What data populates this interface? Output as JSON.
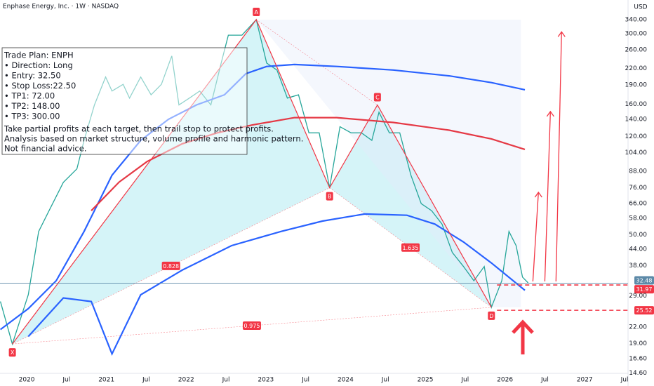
{
  "chart_data": {
    "type": "line",
    "title": "Enphase Energy, Inc. · 1W · NASDAQ",
    "currency": "USD",
    "log_scale": true,
    "grid": false,
    "xlim": [
      2019.665,
      2027.544
    ],
    "ylim": [
      13.0,
      405
    ],
    "xticks": [
      2020,
      {
        "value": 2020.5,
        "label": "Jul"
      },
      2021,
      {
        "value": 2021.5,
        "label": "Jul"
      },
      2022,
      {
        "value": 2022.5,
        "label": "Jul"
      },
      2023,
      {
        "value": 2023.5,
        "label": "Jul"
      },
      2024,
      {
        "value": 2024.5,
        "label": "Jul"
      },
      2025,
      {
        "value": 2025.5,
        "label": "Jul"
      },
      2026,
      {
        "value": 2026.5,
        "label": "Jul"
      },
      2027,
      {
        "value": 2027.5,
        "label": "Jul"
      }
    ],
    "yticks": [
      {
        "value": 14.6,
        "label": "14.60"
      },
      {
        "value": 16.6,
        "label": "16.60"
      },
      {
        "value": 19,
        "label": "19.00"
      },
      {
        "value": 22,
        "label": "22.00"
      },
      {
        "value": 29,
        "label": "29.00"
      },
      {
        "value": 38,
        "label": "38.00"
      },
      {
        "value": 44,
        "label": "44.00"
      },
      {
        "value": 50,
        "label": "50.00"
      },
      {
        "value": 58,
        "label": "58.00"
      },
      {
        "value": 66,
        "label": "66.00"
      },
      {
        "value": 76,
        "label": "76.00"
      },
      {
        "value": 88,
        "label": "88.00"
      },
      {
        "value": 104,
        "label": "104.00"
      },
      {
        "value": 120,
        "label": "120.00"
      },
      {
        "value": 140,
        "label": "140.00"
      },
      {
        "value": 160,
        "label": "160.00"
      },
      {
        "value": 190,
        "label": "190.00"
      },
      {
        "value": 220,
        "label": "220.00"
      },
      {
        "value": 260,
        "label": "260.00"
      },
      {
        "value": 300,
        "label": "300.00"
      },
      {
        "value": 340,
        "label": "340.00"
      }
    ],
    "series": [
      {
        "color": "#26a69a",
        "x": [
          2019.67,
          2019.82,
          2020.02,
          2020.15,
          2020.28,
          2020.46,
          2020.63,
          2020.72,
          2020.85,
          2020.99,
          2021.07,
          2021.21,
          2021.29,
          2021.43,
          2021.56,
          2021.69,
          2021.82,
          2021.91,
          2022.04,
          2022.17,
          2022.31,
          2022.44,
          2022.53,
          2022.7,
          2022.88,
          2023.01,
          2023.14,
          2023.27,
          2023.41,
          2023.54,
          2023.67,
          2023.8,
          2023.93,
          2024.07,
          2024.2,
          2024.33,
          2024.42,
          2024.55,
          2024.68,
          2024.82,
          2024.95,
          2025.08,
          2025.21,
          2025.34,
          2025.48,
          2025.61,
          2025.74,
          2025.83,
          2025.96,
          2026.05,
          2026.14,
          2026.22,
          2026.29
        ],
        "values": [
          27.6,
          18.9,
          29.3,
          51.5,
          62,
          79.8,
          90,
          116,
          159,
          204,
          180,
          191,
          169,
          204,
          174,
          191,
          246,
          159,
          169,
          180,
          159,
          231,
          296,
          296,
          340,
          231,
          217,
          169,
          174,
          124,
          124,
          76,
          131,
          124,
          124,
          116,
          149,
          124,
          124,
          85,
          66,
          62,
          55,
          42.7,
          37.7,
          33.2,
          37.7,
          26.2,
          33.2,
          51.5,
          45.4,
          34.3,
          32.6
        ]
      },
      {
        "color": "#2962ff",
        "x": [
          2019.67,
          2020.02,
          2020.37,
          2020.72,
          2021.07,
          2021.43,
          2021.78,
          2022.13,
          2022.48,
          2022.75,
          2023.01,
          2023.36,
          2023.89,
          2024.6,
          2025.3,
          2025.83,
          2026.25
        ],
        "values": [
          21.5,
          25.9,
          33.2,
          51.5,
          85,
          116,
          140,
          159,
          174,
          210,
          224,
          228,
          224,
          217,
          206,
          194,
          182
        ]
      },
      {
        "color": "#e53945",
        "x": [
          2020.81,
          2021.16,
          2021.51,
          2021.95,
          2022.39,
          2022.83,
          2023.36,
          2023.89,
          2024.6,
          2025.3,
          2025.83,
          2026.25
        ],
        "values": [
          62,
          80,
          96,
          112.5,
          124,
          133,
          142,
          142,
          136,
          127,
          117.5,
          107
        ]
      },
      {
        "color": "#2962ff",
        "x": [
          2020.02,
          2020.46,
          2020.81,
          2021.07,
          2021.43,
          2021.95,
          2022.57,
          2023.19,
          2023.71,
          2024.24,
          2024.77,
          2025.12,
          2025.48,
          2025.83,
          2026.25
        ],
        "values": [
          20.2,
          28.5,
          27.6,
          17.3,
          29.3,
          36.5,
          45.4,
          51.5,
          56.5,
          60.2,
          59.5,
          55,
          46.9,
          38.9,
          30.5
        ]
      }
    ],
    "pattern": {
      "labels": [
        "X",
        "A",
        "B",
        "C",
        "D"
      ],
      "x": [
        2019.82,
        2022.88,
        2023.8,
        2024.4,
        2025.83
      ],
      "values": [
        18.9,
        340,
        76,
        159,
        26.2
      ],
      "ratios": [
        "0.828",
        "1.635",
        "0.975"
      ]
    },
    "levels": [
      {
        "value": 32.48,
        "color": "#5d8aa8"
      },
      {
        "value": 31.97,
        "color": "#f23645"
      },
      {
        "value": 25.52,
        "color": "#f23645"
      }
    ],
    "projection_arrows": {
      "x0": [
        2026.35,
        2026.5,
        2026.64
      ],
      "y0": [
        33,
        33,
        33
      ],
      "x1": [
        2026.42,
        2026.57,
        2026.71
      ],
      "y1": [
        73,
        150,
        305
      ]
    }
  },
  "trade_plan": {
    "lines": [
      "Trade Plan: ENPH",
      "• Direction: Long",
      "• Entry: 32.50",
      "• Stop Loss:22.50",
      "• TP1: 72.00",
      "• TP2: 148.00",
      "• TP3: 300.00"
    ],
    "notes": [
      "Take partial profits at each target, then trail stop to protect profits.",
      "Analysis based on market structure, volume profile and harmonic pattern.",
      "Not financial advice."
    ]
  }
}
